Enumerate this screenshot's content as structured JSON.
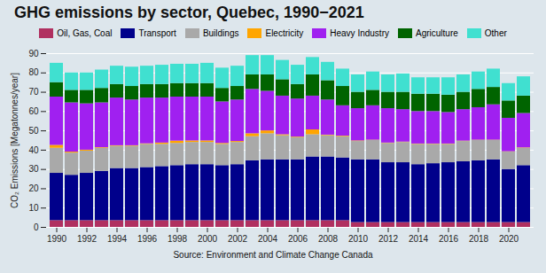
{
  "chart_data": {
    "type": "bar",
    "title": "GHG emissions by sector, Quebec, 1990−2021",
    "y_label": "CO₂ Emissions [Megatonnes/year]",
    "caption": "Source: Environment and Climate Change Canada",
    "categories": [
      "1990",
      null,
      "1992",
      null,
      "1994",
      null,
      "1996",
      null,
      "1998",
      null,
      "2000",
      null,
      "2002",
      null,
      "2004",
      null,
      "2006",
      null,
      "2008",
      null,
      "2010",
      null,
      "2012",
      null,
      "2014",
      null,
      "2016",
      null,
      "2018",
      null,
      "2020",
      null
    ],
    "series": [
      {
        "name": "Oil, Gas, Coal",
        "color": "#b03060",
        "values": [
          3.5,
          3.5,
          3.5,
          3.5,
          3.5,
          3.5,
          3.5,
          3.5,
          3.5,
          3.5,
          3.5,
          3.5,
          3.5,
          3.5,
          3.5,
          3.5,
          3.5,
          3.5,
          3.5,
          3.5,
          2.5,
          2.5,
          2.5,
          2.5,
          2.5,
          2.5,
          2.5,
          2.5,
          2.5,
          2.5,
          2.5,
          2.5
        ]
      },
      {
        "name": "Transport",
        "color": "#00008b",
        "values": [
          24.5,
          23.5,
          24.5,
          25.5,
          27,
          27,
          27.5,
          28,
          28.5,
          29,
          29,
          28.5,
          29,
          31,
          31.5,
          31.5,
          31.5,
          33,
          33,
          32.5,
          32.5,
          32.5,
          31,
          31,
          30,
          30.5,
          31,
          31.5,
          32,
          32.5,
          27.5,
          29.5
        ]
      },
      {
        "name": "Buildings",
        "color": "#a9a9a9",
        "values": [
          13,
          11.5,
          11.5,
          12,
          11.5,
          11.5,
          12,
          11.5,
          11.5,
          11.5,
          11.5,
          11,
          11.5,
          12.5,
          13.5,
          12.5,
          11.5,
          11.5,
          11,
          11,
          9.5,
          10,
          10,
          10.5,
          10.5,
          10,
          9.5,
          10.5,
          10.5,
          10,
          9,
          9
        ]
      },
      {
        "name": "Electricity",
        "color": "#ffa500",
        "values": [
          1.5,
          0.5,
          0.5,
          0.3,
          0.3,
          0.3,
          0.3,
          0.7,
          1.2,
          0.8,
          0.8,
          0.5,
          0.5,
          1.5,
          1.5,
          0.5,
          0.3,
          2.5,
          0.3,
          0.3,
          0.3,
          0.2,
          0.2,
          0.2,
          0.2,
          0.2,
          0.2,
          0.2,
          0.2,
          0.2,
          0.2,
          0.2
        ]
      },
      {
        "name": "Heavy Industry",
        "color": "#a020f0",
        "values": [
          25,
          25.5,
          24,
          23.2,
          24.7,
          23.7,
          23.7,
          23.3,
          22.8,
          22.7,
          22.7,
          21.5,
          21.5,
          23,
          20.5,
          20,
          19.7,
          17.5,
          18.2,
          15.7,
          16.7,
          17.8,
          17.8,
          16.8,
          16.8,
          16.8,
          16.3,
          16.3,
          16.8,
          18.3,
          17.3,
          17.8
        ]
      },
      {
        "name": "Agriculture",
        "color": "#006400",
        "values": [
          7.5,
          6.5,
          7,
          7.5,
          7,
          7,
          7,
          7,
          7,
          7,
          7,
          7,
          7,
          7.5,
          8.5,
          8.5,
          7.5,
          11,
          10,
          10,
          8.5,
          8,
          8.5,
          9,
          9,
          9,
          9,
          9,
          9.5,
          9,
          9,
          9
        ]
      },
      {
        "name": "Other",
        "color": "#40e0d0",
        "values": [
          10,
          9,
          9,
          9.5,
          9.5,
          10,
          9.5,
          10,
          10,
          10,
          10.5,
          10.5,
          10.5,
          10,
          10,
          10,
          10,
          9,
          9.5,
          9,
          9,
          9.5,
          9,
          9.5,
          8.5,
          8.5,
          9,
          9,
          9,
          9.5,
          9,
          10
        ]
      }
    ],
    "ylim": [
      0,
      90
    ],
    "yticks": [
      0,
      10,
      20,
      30,
      40,
      50,
      60,
      70,
      80,
      90
    ],
    "grid": true,
    "stacked": true,
    "legend": "top"
  }
}
